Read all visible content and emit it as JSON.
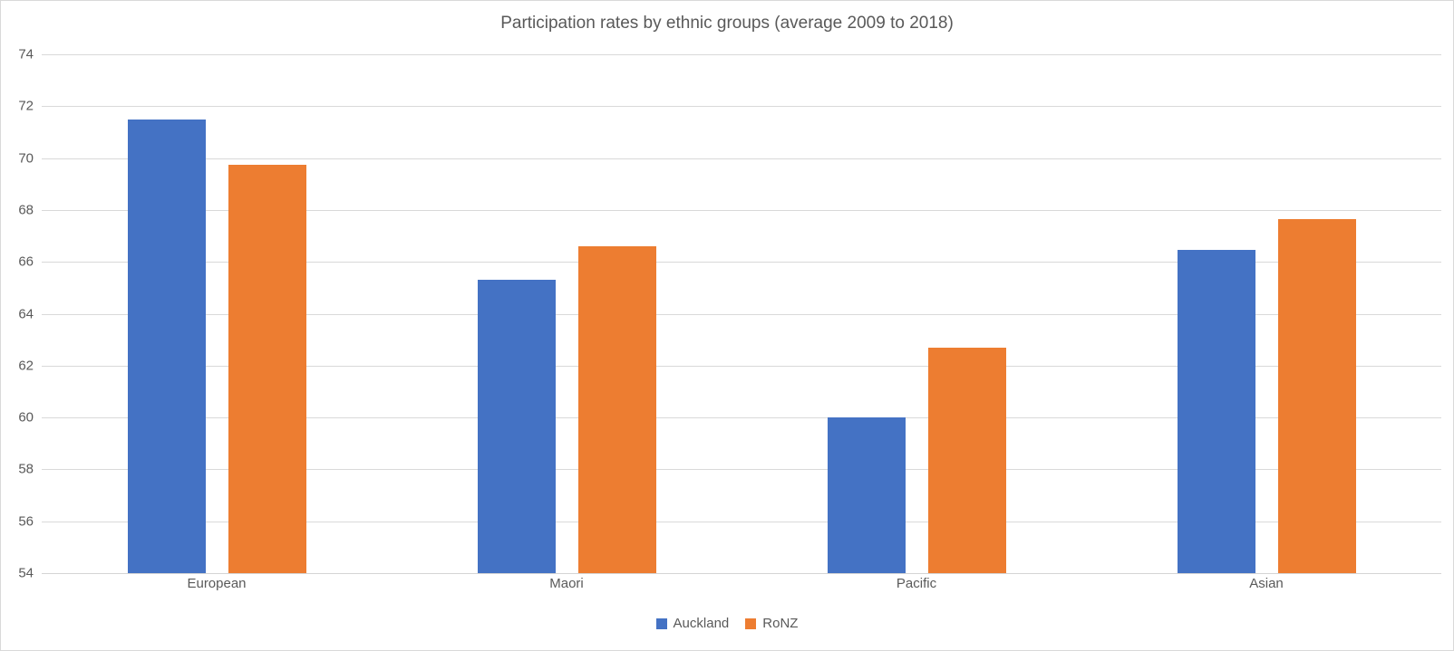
{
  "chart_data": {
    "type": "bar",
    "title": "Participation rates by ethnic groups (average 2009 to 2018)",
    "categories": [
      "European",
      "Maori",
      "Pacific",
      "Asian"
    ],
    "series": [
      {
        "name": "Auckland",
        "color": "#4472C4",
        "values": [
          71.5,
          65.3,
          60.0,
          66.45
        ]
      },
      {
        "name": "RoNZ",
        "color": "#ED7D31",
        "values": [
          69.75,
          66.6,
          62.7,
          67.65
        ]
      }
    ],
    "xlabel": "",
    "ylabel": "",
    "ylim": [
      54,
      74
    ],
    "yticks": [
      54,
      56,
      58,
      60,
      62,
      64,
      66,
      68,
      70,
      72,
      74
    ],
    "grid": true,
    "legend_position": "bottom",
    "colors": {
      "text": "#595959",
      "gridline": "#D9D9D9",
      "axis": "#D4D4D4",
      "background": "#FFFFFF",
      "border": "#D9D9D9"
    }
  }
}
